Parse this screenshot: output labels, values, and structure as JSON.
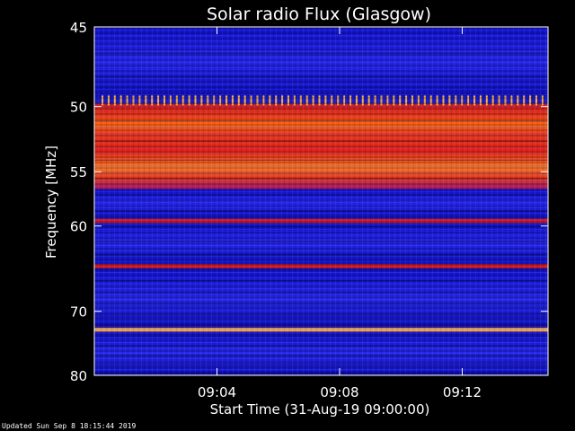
{
  "chart_data": {
    "type": "heatmap",
    "title": "Solar radio Flux (Glasgow)",
    "xlabel": "Start Time (31-Aug-19 09:00:00)",
    "ylabel": "Frequency [MHz]",
    "x_ticks": [
      "09:04",
      "09:08",
      "09:12"
    ],
    "x_tick_minutes": [
      4,
      8,
      12
    ],
    "xlim_minutes": [
      0,
      14.8
    ],
    "y_ticks": [
      45,
      50,
      55,
      60,
      70,
      80
    ],
    "y_scale": "log-inverted",
    "ylim": [
      45,
      80
    ],
    "colormap": [
      "#000000",
      "#0000ff",
      "#ff0000",
      "#ffff00",
      "#ffffff"
    ],
    "bands": [
      {
        "freq_start": 45,
        "freq_end": 49.3,
        "level": "low"
      },
      {
        "freq_start": 49.3,
        "freq_end": 49.8,
        "level": "spiky"
      },
      {
        "freq_start": 49.8,
        "freq_end": 56.5,
        "level": "high"
      },
      {
        "freq_start": 56.5,
        "freq_end": 59.3,
        "level": "low"
      },
      {
        "freq_start": 59.3,
        "freq_end": 59.7,
        "level": "line-red"
      },
      {
        "freq_start": 59.7,
        "freq_end": 64.1,
        "level": "low"
      },
      {
        "freq_start": 64.1,
        "freq_end": 64.6,
        "level": "line-red"
      },
      {
        "freq_start": 64.6,
        "freq_end": 72.3,
        "level": "low"
      },
      {
        "freq_start": 72.3,
        "freq_end": 72.9,
        "level": "line-white"
      },
      {
        "freq_start": 72.9,
        "freq_end": 80,
        "level": "low"
      }
    ]
  },
  "footer": {
    "updated": "Updated Sun Sep  8 18:15:44 2019"
  }
}
